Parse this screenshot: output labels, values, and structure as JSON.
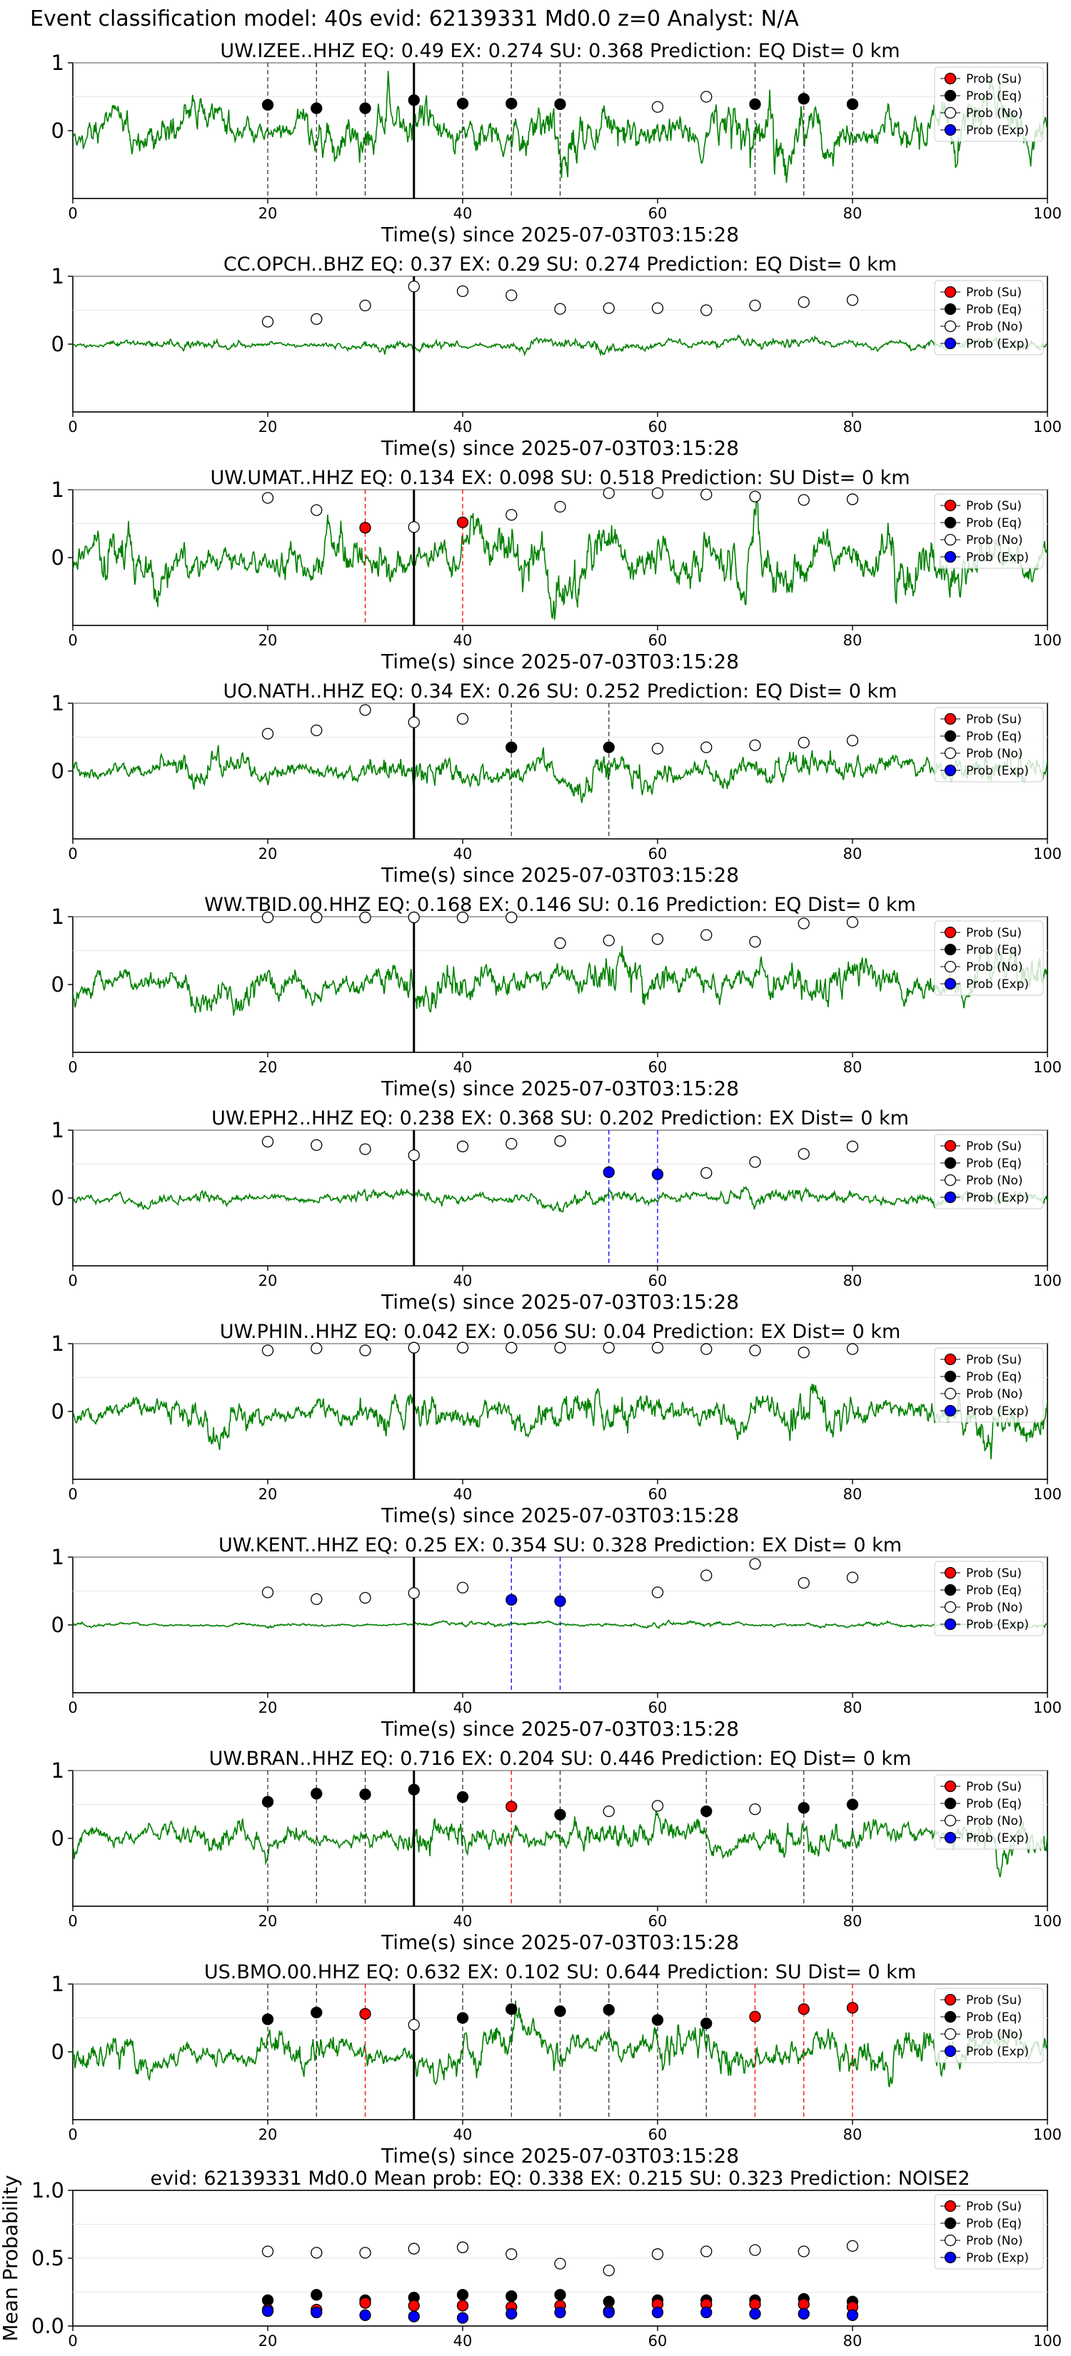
{
  "figure": {
    "title": "Event classification model: 40s evid: 62139331 Md0.0 z=0 Analyst: N/A"
  },
  "legend": {
    "entries": [
      "Prob (Su)",
      "Prob (Eq)",
      "Prob (No)",
      "Prob (Exp)"
    ],
    "colors": [
      "#ff0000",
      "#000000",
      "#ffffff",
      "#0000ff"
    ]
  },
  "colors": {
    "waveform": "#008000",
    "eq_line": "#333333",
    "su_line": "#ff0000",
    "exp_line": "#0000ff",
    "pick_line": "#000000"
  },
  "chart_data": [
    {
      "type": "line",
      "title": "UW.IZEE..HHZ   EQ: 0.49  EX: 0.274  SU: 0.368   Prediction: EQ    Dist= 0 km",
      "xlabel": "Time(s) since 2025-07-03T03:15:28",
      "xlim": [
        0,
        100
      ],
      "ylim": [
        -1,
        1
      ],
      "xticks": [
        "0",
        "20",
        "40",
        "60",
        "80",
        "100"
      ],
      "yticks": [
        "0",
        "1"
      ],
      "legend_position": "upper-right",
      "arrival_time": 35,
      "amplitude": 0.5,
      "seed": 11,
      "points": [
        {
          "x": 20,
          "y": 0.38,
          "cls": "eq"
        },
        {
          "x": 25,
          "y": 0.33,
          "cls": "eq"
        },
        {
          "x": 30,
          "y": 0.33,
          "cls": "eq"
        },
        {
          "x": 35,
          "y": 0.45,
          "cls": "eq"
        },
        {
          "x": 40,
          "y": 0.4,
          "cls": "eq"
        },
        {
          "x": 45,
          "y": 0.4,
          "cls": "eq"
        },
        {
          "x": 50,
          "y": 0.39,
          "cls": "eq"
        },
        {
          "x": 60,
          "y": 0.35,
          "cls": "no"
        },
        {
          "x": 65,
          "y": 0.5,
          "cls": "no"
        },
        {
          "x": 70,
          "y": 0.39,
          "cls": "eq"
        },
        {
          "x": 75,
          "y": 0.47,
          "cls": "eq"
        },
        {
          "x": 80,
          "y": 0.39,
          "cls": "eq"
        }
      ]
    },
    {
      "type": "line",
      "title": "CC.OPCH..BHZ   EQ: 0.37  EX: 0.29  SU: 0.274   Prediction: EQ    Dist= 0 km",
      "xlabel": "Time(s) since 2025-07-03T03:15:28",
      "xlim": [
        0,
        100
      ],
      "ylim": [
        -1,
        1
      ],
      "xticks": [
        "0",
        "20",
        "40",
        "60",
        "80",
        "100"
      ],
      "yticks": [
        "0",
        "1"
      ],
      "legend_position": "upper-right",
      "arrival_time": 35,
      "amplitude": 0.1,
      "seed": 23,
      "points": [
        {
          "x": 20,
          "y": 0.33,
          "cls": "no"
        },
        {
          "x": 25,
          "y": 0.37,
          "cls": "no"
        },
        {
          "x": 30,
          "y": 0.57,
          "cls": "no"
        },
        {
          "x": 35,
          "y": 0.85,
          "cls": "no"
        },
        {
          "x": 40,
          "y": 0.78,
          "cls": "no"
        },
        {
          "x": 45,
          "y": 0.72,
          "cls": "no"
        },
        {
          "x": 50,
          "y": 0.52,
          "cls": "no"
        },
        {
          "x": 55,
          "y": 0.53,
          "cls": "no"
        },
        {
          "x": 60,
          "y": 0.53,
          "cls": "no"
        },
        {
          "x": 65,
          "y": 0.5,
          "cls": "no"
        },
        {
          "x": 70,
          "y": 0.57,
          "cls": "no"
        },
        {
          "x": 75,
          "y": 0.62,
          "cls": "no"
        },
        {
          "x": 80,
          "y": 0.65,
          "cls": "no"
        }
      ]
    },
    {
      "type": "line",
      "title": "UW.UMAT..HHZ   EQ: 0.134  EX: 0.098  SU: 0.518   Prediction: SU    Dist= 0 km",
      "xlabel": "Time(s) since 2025-07-03T03:15:28",
      "xlim": [
        0,
        100
      ],
      "ylim": [
        -1,
        1
      ],
      "xticks": [
        "0",
        "20",
        "40",
        "60",
        "80",
        "100"
      ],
      "yticks": [
        "0",
        "1"
      ],
      "legend_position": "upper-right",
      "arrival_time": 35,
      "amplitude": 0.55,
      "seed": 37,
      "points": [
        {
          "x": 20,
          "y": 0.88,
          "cls": "no"
        },
        {
          "x": 25,
          "y": 0.7,
          "cls": "no"
        },
        {
          "x": 30,
          "y": 0.44,
          "cls": "su"
        },
        {
          "x": 35,
          "y": 0.45,
          "cls": "no"
        },
        {
          "x": 40,
          "y": 0.52,
          "cls": "su"
        },
        {
          "x": 45,
          "y": 0.63,
          "cls": "no"
        },
        {
          "x": 50,
          "y": 0.75,
          "cls": "no"
        },
        {
          "x": 55,
          "y": 0.95,
          "cls": "no"
        },
        {
          "x": 60,
          "y": 0.95,
          "cls": "no"
        },
        {
          "x": 65,
          "y": 0.93,
          "cls": "no"
        },
        {
          "x": 70,
          "y": 0.9,
          "cls": "no"
        },
        {
          "x": 75,
          "y": 0.85,
          "cls": "no"
        },
        {
          "x": 80,
          "y": 0.86,
          "cls": "no"
        }
      ]
    },
    {
      "type": "line",
      "title": "UO.NATH..HHZ   EQ: 0.34  EX: 0.26  SU: 0.252   Prediction: EQ    Dist= 0 km",
      "xlabel": "Time(s) since 2025-07-03T03:15:28",
      "xlim": [
        0,
        100
      ],
      "ylim": [
        -1,
        1
      ],
      "xticks": [
        "0",
        "20",
        "40",
        "60",
        "80",
        "100"
      ],
      "yticks": [
        "0",
        "1"
      ],
      "legend_position": "upper-right",
      "arrival_time": 35,
      "amplitude": 0.3,
      "seed": 41,
      "points": [
        {
          "x": 20,
          "y": 0.55,
          "cls": "no"
        },
        {
          "x": 25,
          "y": 0.6,
          "cls": "no"
        },
        {
          "x": 30,
          "y": 0.9,
          "cls": "no"
        },
        {
          "x": 35,
          "y": 0.72,
          "cls": "no"
        },
        {
          "x": 40,
          "y": 0.77,
          "cls": "no"
        },
        {
          "x": 45,
          "y": 0.35,
          "cls": "eq"
        },
        {
          "x": 55,
          "y": 0.35,
          "cls": "eq"
        },
        {
          "x": 60,
          "y": 0.33,
          "cls": "no"
        },
        {
          "x": 65,
          "y": 0.35,
          "cls": "no"
        },
        {
          "x": 70,
          "y": 0.38,
          "cls": "no"
        },
        {
          "x": 75,
          "y": 0.42,
          "cls": "no"
        },
        {
          "x": 80,
          "y": 0.45,
          "cls": "no"
        }
      ]
    },
    {
      "type": "line",
      "title": "WW.TBID.00.HHZ   EQ: 0.168  EX: 0.146  SU: 0.16   Prediction: EQ    Dist= 0 km",
      "xlabel": "Time(s) since 2025-07-03T03:15:28",
      "xlim": [
        0,
        100
      ],
      "ylim": [
        -1,
        1
      ],
      "xticks": [
        "0",
        "20",
        "40",
        "60",
        "80",
        "100"
      ],
      "yticks": [
        "0",
        "1"
      ],
      "legend_position": "upper-right",
      "arrival_time": 35,
      "amplitude": 0.4,
      "seed": 53,
      "points": [
        {
          "x": 20,
          "y": 0.99,
          "cls": "no"
        },
        {
          "x": 25,
          "y": 0.99,
          "cls": "no"
        },
        {
          "x": 30,
          "y": 0.99,
          "cls": "no"
        },
        {
          "x": 35,
          "y": 0.99,
          "cls": "no"
        },
        {
          "x": 40,
          "y": 0.99,
          "cls": "no"
        },
        {
          "x": 45,
          "y": 0.99,
          "cls": "no"
        },
        {
          "x": 50,
          "y": 0.61,
          "cls": "no"
        },
        {
          "x": 55,
          "y": 0.65,
          "cls": "no"
        },
        {
          "x": 60,
          "y": 0.67,
          "cls": "no"
        },
        {
          "x": 65,
          "y": 0.73,
          "cls": "no"
        },
        {
          "x": 70,
          "y": 0.63,
          "cls": "no"
        },
        {
          "x": 75,
          "y": 0.9,
          "cls": "no"
        },
        {
          "x": 80,
          "y": 0.92,
          "cls": "no"
        }
      ]
    },
    {
      "type": "line",
      "title": "UW.EPH2..HHZ   EQ: 0.238  EX: 0.368  SU: 0.202   Prediction: EX    Dist= 0 km",
      "xlabel": "Time(s) since 2025-07-03T03:15:28",
      "xlim": [
        0,
        100
      ],
      "ylim": [
        -1,
        1
      ],
      "xticks": [
        "0",
        "20",
        "40",
        "60",
        "80",
        "100"
      ],
      "yticks": [
        "0",
        "1"
      ],
      "legend_position": "upper-right",
      "arrival_time": 35,
      "amplitude": 0.14,
      "seed": 67,
      "points": [
        {
          "x": 20,
          "y": 0.83,
          "cls": "no"
        },
        {
          "x": 25,
          "y": 0.78,
          "cls": "no"
        },
        {
          "x": 30,
          "y": 0.72,
          "cls": "no"
        },
        {
          "x": 35,
          "y": 0.63,
          "cls": "no"
        },
        {
          "x": 40,
          "y": 0.76,
          "cls": "no"
        },
        {
          "x": 45,
          "y": 0.8,
          "cls": "no"
        },
        {
          "x": 50,
          "y": 0.84,
          "cls": "no"
        },
        {
          "x": 55,
          "y": 0.38,
          "cls": "exp"
        },
        {
          "x": 60,
          "y": 0.35,
          "cls": "exp"
        },
        {
          "x": 65,
          "y": 0.37,
          "cls": "no"
        },
        {
          "x": 70,
          "y": 0.53,
          "cls": "no"
        },
        {
          "x": 75,
          "y": 0.65,
          "cls": "no"
        },
        {
          "x": 80,
          "y": 0.76,
          "cls": "no"
        }
      ]
    },
    {
      "type": "line",
      "title": "UW.PHIN..HHZ   EQ: 0.042  EX: 0.056  SU: 0.04   Prediction: EX    Dist= 0 km",
      "xlabel": "Time(s) since 2025-07-03T03:15:28",
      "xlim": [
        0,
        100
      ],
      "ylim": [
        -1,
        1
      ],
      "xticks": [
        "0",
        "20",
        "40",
        "60",
        "80",
        "100"
      ],
      "yticks": [
        "0",
        "1"
      ],
      "legend_position": "upper-right",
      "arrival_time": 35,
      "amplitude": 0.38,
      "seed": 79,
      "points": [
        {
          "x": 20,
          "y": 0.9,
          "cls": "no"
        },
        {
          "x": 25,
          "y": 0.93,
          "cls": "no"
        },
        {
          "x": 30,
          "y": 0.9,
          "cls": "no"
        },
        {
          "x": 35,
          "y": 0.94,
          "cls": "no"
        },
        {
          "x": 40,
          "y": 0.94,
          "cls": "no"
        },
        {
          "x": 45,
          "y": 0.94,
          "cls": "no"
        },
        {
          "x": 50,
          "y": 0.94,
          "cls": "no"
        },
        {
          "x": 55,
          "y": 0.94,
          "cls": "no"
        },
        {
          "x": 60,
          "y": 0.94,
          "cls": "no"
        },
        {
          "x": 65,
          "y": 0.92,
          "cls": "no"
        },
        {
          "x": 70,
          "y": 0.9,
          "cls": "no"
        },
        {
          "x": 75,
          "y": 0.87,
          "cls": "no"
        },
        {
          "x": 80,
          "y": 0.92,
          "cls": "no"
        }
      ]
    },
    {
      "type": "line",
      "title": "UW.KENT..HHZ   EQ: 0.25  EX: 0.354  SU: 0.328   Prediction: EX    Dist= 0 km",
      "xlabel": "Time(s) since 2025-07-03T03:15:28",
      "xlim": [
        0,
        100
      ],
      "ylim": [
        -1,
        1
      ],
      "xticks": [
        "0",
        "20",
        "40",
        "60",
        "80",
        "100"
      ],
      "yticks": [
        "0",
        "1"
      ],
      "legend_position": "upper-right",
      "arrival_time": 35,
      "amplitude": 0.04,
      "seed": 83,
      "points": [
        {
          "x": 20,
          "y": 0.48,
          "cls": "no"
        },
        {
          "x": 25,
          "y": 0.38,
          "cls": "no"
        },
        {
          "x": 30,
          "y": 0.4,
          "cls": "no"
        },
        {
          "x": 35,
          "y": 0.47,
          "cls": "no"
        },
        {
          "x": 40,
          "y": 0.55,
          "cls": "no"
        },
        {
          "x": 45,
          "y": 0.37,
          "cls": "exp"
        },
        {
          "x": 50,
          "y": 0.35,
          "cls": "exp"
        },
        {
          "x": 60,
          "y": 0.48,
          "cls": "no"
        },
        {
          "x": 65,
          "y": 0.73,
          "cls": "no"
        },
        {
          "x": 70,
          "y": 0.9,
          "cls": "no"
        },
        {
          "x": 75,
          "y": 0.62,
          "cls": "no"
        },
        {
          "x": 80,
          "y": 0.7,
          "cls": "no"
        }
      ]
    },
    {
      "type": "line",
      "title": "UW.BRAN..HHZ   EQ: 0.716  EX: 0.204  SU: 0.446   Prediction: EQ    Dist= 0 km",
      "xlabel": "Time(s) since 2025-07-03T03:15:28",
      "xlim": [
        0,
        100
      ],
      "ylim": [
        -1,
        1
      ],
      "xticks": [
        "0",
        "20",
        "40",
        "60",
        "80",
        "100"
      ],
      "yticks": [
        "0",
        "1"
      ],
      "legend_position": "upper-right",
      "arrival_time": 35,
      "amplitude": 0.3,
      "seed": 97,
      "points": [
        {
          "x": 20,
          "y": 0.54,
          "cls": "eq"
        },
        {
          "x": 25,
          "y": 0.66,
          "cls": "eq"
        },
        {
          "x": 30,
          "y": 0.65,
          "cls": "eq"
        },
        {
          "x": 35,
          "y": 0.72,
          "cls": "eq"
        },
        {
          "x": 40,
          "y": 0.61,
          "cls": "eq"
        },
        {
          "x": 45,
          "y": 0.47,
          "cls": "su"
        },
        {
          "x": 50,
          "y": 0.35,
          "cls": "eq"
        },
        {
          "x": 55,
          "y": 0.4,
          "cls": "no"
        },
        {
          "x": 60,
          "y": 0.48,
          "cls": "no"
        },
        {
          "x": 65,
          "y": 0.4,
          "cls": "eq"
        },
        {
          "x": 70,
          "y": 0.43,
          "cls": "no"
        },
        {
          "x": 75,
          "y": 0.45,
          "cls": "eq"
        },
        {
          "x": 80,
          "y": 0.5,
          "cls": "eq"
        }
      ]
    },
    {
      "type": "line",
      "title": "US.BMO.00.HHZ   EQ: 0.632  EX: 0.102  SU: 0.644   Prediction: SU    Dist= 0 km",
      "xlabel": "Time(s) since 2025-07-03T03:15:28",
      "xlim": [
        0,
        100
      ],
      "ylim": [
        -1,
        1
      ],
      "xticks": [
        "0",
        "20",
        "40",
        "60",
        "80",
        "100"
      ],
      "yticks": [
        "0",
        "1"
      ],
      "legend_position": "upper-right",
      "arrival_time": 35,
      "amplitude": 0.38,
      "seed": 101,
      "points": [
        {
          "x": 20,
          "y": 0.48,
          "cls": "eq"
        },
        {
          "x": 25,
          "y": 0.58,
          "cls": "eq"
        },
        {
          "x": 30,
          "y": 0.56,
          "cls": "su"
        },
        {
          "x": 35,
          "y": 0.4,
          "cls": "no"
        },
        {
          "x": 40,
          "y": 0.5,
          "cls": "eq"
        },
        {
          "x": 45,
          "y": 0.63,
          "cls": "eq"
        },
        {
          "x": 50,
          "y": 0.6,
          "cls": "eq"
        },
        {
          "x": 55,
          "y": 0.62,
          "cls": "eq"
        },
        {
          "x": 60,
          "y": 0.47,
          "cls": "eq"
        },
        {
          "x": 65,
          "y": 0.42,
          "cls": "eq"
        },
        {
          "x": 70,
          "y": 0.52,
          "cls": "su"
        },
        {
          "x": 75,
          "y": 0.63,
          "cls": "su"
        },
        {
          "x": 80,
          "y": 0.65,
          "cls": "su"
        }
      ]
    },
    {
      "type": "scatter",
      "title": "evid: 62139331  Md0.0   Mean prob:   EQ: 0.338  EX: 0.215  SU: 0.323   Prediction: NOISE2",
      "ylabel": "Mean Probability",
      "xlim": [
        0,
        100
      ],
      "ylim": [
        0,
        1
      ],
      "xticks": [
        "0",
        "20",
        "40",
        "60",
        "80",
        "100"
      ],
      "yticks": [
        "0.0",
        "0.5",
        "1.0"
      ],
      "legend_position": "upper-right",
      "x": [
        20,
        25,
        30,
        35,
        40,
        45,
        50,
        55,
        60,
        65,
        70,
        75,
        80
      ],
      "series": [
        {
          "cls": "no",
          "values": [
            0.55,
            0.54,
            0.54,
            0.57,
            0.58,
            0.53,
            0.46,
            0.41,
            0.53,
            0.55,
            0.56,
            0.55,
            0.59
          ]
        },
        {
          "cls": "eq",
          "values": [
            0.19,
            0.23,
            0.19,
            0.21,
            0.23,
            0.22,
            0.23,
            0.18,
            0.19,
            0.19,
            0.19,
            0.2,
            0.18
          ]
        },
        {
          "cls": "su",
          "values": [
            0.12,
            0.12,
            0.17,
            0.15,
            0.15,
            0.14,
            0.15,
            0.11,
            0.16,
            0.16,
            0.16,
            0.16,
            0.14
          ]
        },
        {
          "cls": "exp",
          "values": [
            0.11,
            0.1,
            0.08,
            0.07,
            0.06,
            0.09,
            0.1,
            0.1,
            0.1,
            0.1,
            0.09,
            0.09,
            0.08
          ]
        }
      ]
    }
  ]
}
